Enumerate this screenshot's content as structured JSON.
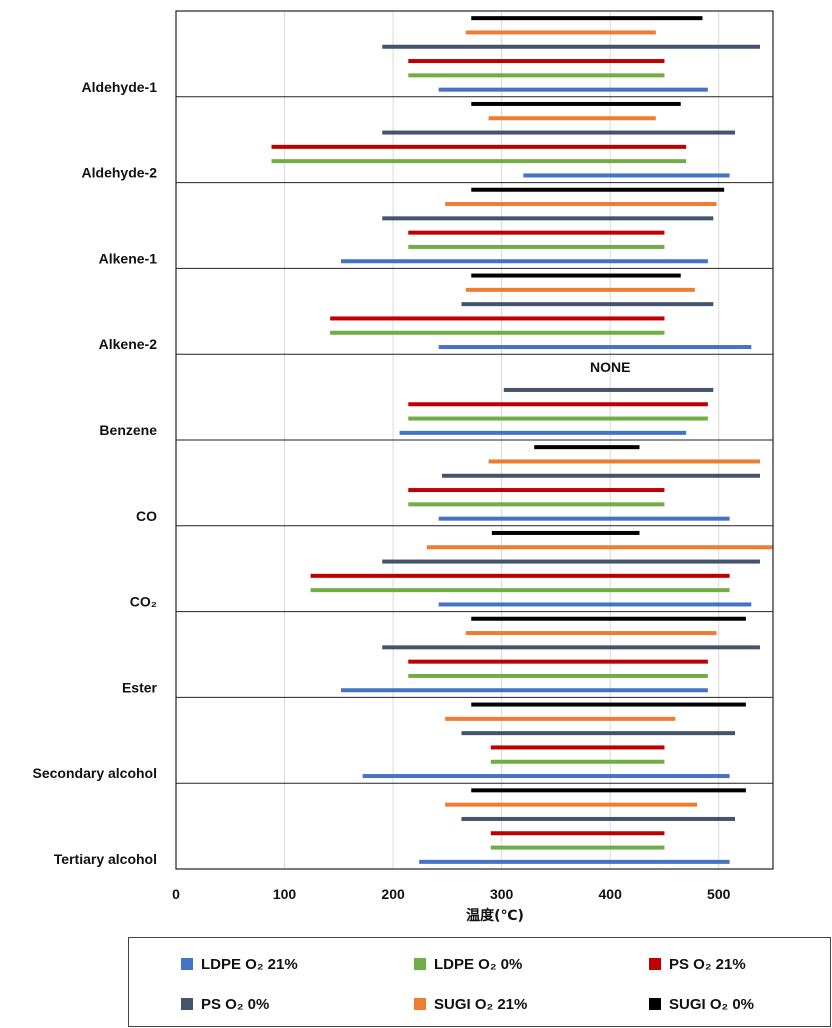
{
  "chart_data": {
    "type": "bar",
    "orientation": "horizontal",
    "xlabel": "温度(℃)",
    "xlim": [
      0,
      550
    ],
    "xticks": [
      "0",
      "100",
      "200",
      "300",
      "400",
      "500"
    ],
    "grid": true,
    "legend_position": "bottom",
    "categories": [
      "Aldehyde-1",
      "Aldehyde-2",
      "Alkene-1",
      "Alkene-2",
      "Benzene",
      "CO",
      "CO₂",
      "Ester",
      "Secondary alcohol",
      "Tertiary alcohol"
    ],
    "series": [
      {
        "name": "LDPE O₂ 21%",
        "color": "#4472C4",
        "ranges": [
          [
            242,
            490
          ],
          [
            320,
            510
          ],
          [
            152,
            490
          ],
          [
            242,
            530
          ],
          [
            206,
            470
          ],
          [
            242,
            510
          ],
          [
            242,
            530
          ],
          [
            152,
            490
          ],
          [
            172,
            510
          ],
          [
            224,
            510
          ]
        ]
      },
      {
        "name": "LDPE O₂ 0%",
        "color": "#70AD47",
        "ranges": [
          [
            214,
            450
          ],
          [
            88,
            470
          ],
          [
            214,
            450
          ],
          [
            142,
            450
          ],
          [
            214,
            490
          ],
          [
            214,
            450
          ],
          [
            124,
            510
          ],
          [
            214,
            490
          ],
          [
            290,
            450
          ],
          [
            290,
            450
          ]
        ]
      },
      {
        "name": "PS O₂ 21%",
        "color": "#C00000",
        "ranges": [
          [
            214,
            450
          ],
          [
            88,
            470
          ],
          [
            214,
            450
          ],
          [
            142,
            450
          ],
          [
            214,
            490
          ],
          [
            214,
            450
          ],
          [
            124,
            510
          ],
          [
            214,
            490
          ],
          [
            290,
            450
          ],
          [
            290,
            450
          ]
        ]
      },
      {
        "name": "PS O₂ 0%",
        "color": "#44546A",
        "ranges": [
          [
            190,
            538
          ],
          [
            190,
            515
          ],
          [
            190,
            495
          ],
          [
            263,
            495
          ],
          [
            302,
            495
          ],
          [
            245,
            538
          ],
          [
            190,
            538
          ],
          [
            190,
            538
          ],
          [
            263,
            515
          ],
          [
            263,
            515
          ]
        ]
      },
      {
        "name": "SUGI O₂ 21%",
        "color": "#ED7D31",
        "ranges": [
          [
            267,
            442
          ],
          [
            288,
            442
          ],
          [
            248,
            498
          ],
          [
            267,
            478
          ],
          null,
          [
            288,
            538
          ],
          [
            231,
            550
          ],
          [
            267,
            498
          ],
          [
            248,
            460
          ],
          [
            248,
            480
          ]
        ]
      },
      {
        "name": "SUGI O₂ 0%",
        "color": "#000000",
        "ranges": [
          [
            272,
            485
          ],
          [
            272,
            465
          ],
          [
            272,
            505
          ],
          [
            272,
            465
          ],
          null,
          [
            330,
            427
          ],
          [
            291,
            427
          ],
          [
            272,
            525
          ],
          [
            272,
            525
          ],
          [
            272,
            525
          ]
        ]
      }
    ],
    "annotations": [
      {
        "category": "Benzene",
        "text": "NONE"
      }
    ]
  }
}
